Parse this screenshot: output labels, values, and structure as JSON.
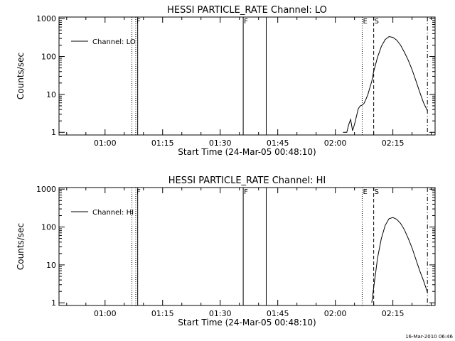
{
  "x_ticks": [
    "01:00",
    "01:15",
    "01:30",
    "01:45",
    "02:00",
    "02:15"
  ],
  "y_ticks": [
    "1",
    "10",
    "100",
    "1000"
  ],
  "footer_date": "16-Mar-2010 06:46",
  "colors": {
    "line": "#000000",
    "background": "#ffffff"
  },
  "chart_data": [
    {
      "type": "line",
      "title": "HESSI PARTICLE_RATE Channel: LO",
      "xlabel": "Start Time (24-Mar-05 00:48:10)",
      "ylabel": "Counts/sec",
      "yscale": "log",
      "xlim": [
        "00:48",
        "02:26"
      ],
      "ylim": [
        0.85,
        1100
      ],
      "grid": false,
      "legend": {
        "label": "Channel: LO",
        "placement": "top-left"
      },
      "markers": [
        {
          "time": "01:07",
          "style": "dotted",
          "label": ""
        },
        {
          "time": "01:08",
          "style": "dotted",
          "label": "F"
        },
        {
          "time": "01:08.5",
          "style": "solid",
          "label": ""
        },
        {
          "time": "01:36",
          "style": "solid",
          "label": "F"
        },
        {
          "time": "01:42",
          "style": "solid",
          "label": ""
        },
        {
          "time": "02:07",
          "style": "dotted",
          "label": "E"
        },
        {
          "time": "02:10",
          "style": "dashed",
          "label": "S"
        },
        {
          "time": "02:24",
          "style": "dashdot",
          "label": ""
        }
      ],
      "series": [
        {
          "x": [
            "02:02",
            "02:03",
            "02:03.5",
            "02:04",
            "02:04.5",
            "02:05",
            "02:05.5",
            "02:06",
            "02:06.5",
            "02:07",
            "02:07.5",
            "02:08",
            "02:08.5",
            "02:09",
            "02:09.5",
            "02:10",
            "02:11",
            "02:12",
            "02:13",
            "02:14",
            "02:15",
            "02:16",
            "02:17",
            "02:18",
            "02:19",
            "02:20",
            "02:21",
            "02:22",
            "02:23",
            "02:24"
          ],
          "y": [
            1.0,
            1.0,
            1.6,
            2.2,
            1.1,
            1.6,
            2.6,
            4.2,
            5.0,
            5.2,
            5.8,
            7.5,
            10,
            15,
            22,
            40,
            95,
            185,
            280,
            335,
            320,
            270,
            200,
            130,
            80,
            45,
            23,
            11.5,
            6.0,
            3.7
          ]
        }
      ]
    },
    {
      "type": "line",
      "title": "HESSI PARTICLE_RATE Channel: HI",
      "xlabel": "Start Time (24-Mar-05 00:48:10)",
      "ylabel": "Counts/sec",
      "yscale": "log",
      "xlim": [
        "00:48",
        "02:26"
      ],
      "ylim": [
        0.85,
        1100
      ],
      "grid": false,
      "legend": {
        "label": "Channel: HI",
        "placement": "top-left"
      },
      "markers": [
        {
          "time": "01:07",
          "style": "dotted",
          "label": ""
        },
        {
          "time": "01:08",
          "style": "dotted",
          "label": "F"
        },
        {
          "time": "01:08.5",
          "style": "solid",
          "label": ""
        },
        {
          "time": "01:36",
          "style": "solid",
          "label": "F"
        },
        {
          "time": "01:42",
          "style": "solid",
          "label": ""
        },
        {
          "time": "02:07",
          "style": "dotted",
          "label": "E"
        },
        {
          "time": "02:10",
          "style": "dashed",
          "label": "S"
        },
        {
          "time": "02:24",
          "style": "dashdot",
          "label": ""
        }
      ],
      "series": [
        {
          "x": [
            "02:09.5",
            "02:10",
            "02:10.5",
            "02:11",
            "02:12",
            "02:13",
            "02:14",
            "02:15",
            "02:16",
            "02:17",
            "02:18",
            "02:19",
            "02:20",
            "02:21",
            "02:22",
            "02:23",
            "02:24"
          ],
          "y": [
            1.0,
            2.5,
            6.0,
            15,
            50,
            110,
            165,
            178,
            160,
            125,
            85,
            50,
            28,
            14,
            7.0,
            3.8,
            1.9
          ]
        }
      ]
    }
  ]
}
